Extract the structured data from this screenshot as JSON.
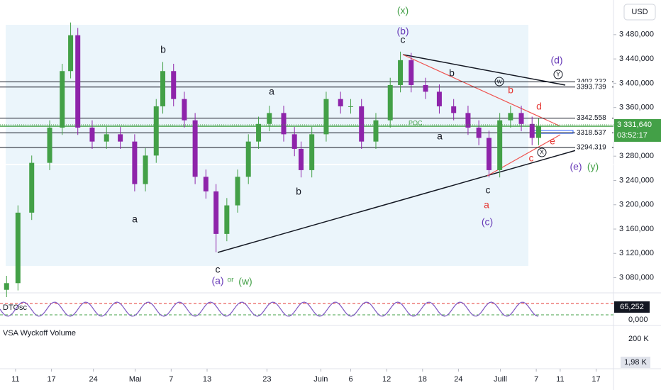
{
  "chart_data": {
    "type": "candlestick",
    "currency": "USD",
    "up_color": "#43a047",
    "down_color": "#8e24aa",
    "x": [
      9.5,
      11.4,
      13.7,
      16.7,
      18.8,
      20.2,
      21.4,
      23.8,
      26.2,
      28.5,
      30.9,
      32.7,
      34.5,
      35.6,
      37.4,
      39.2,
      41,
      42.8,
      44.5,
      46.3,
      48.1,
      49.9,
      51.6,
      53.4,
      55.8,
      57.6,
      58.7,
      60.5,
      62.9,
      65.3,
      67,
      68.8,
      71.2,
      73.6,
      75.3,
      77.1,
      79.5,
      81.8,
      84.2,
      86.6,
      88.4,
      90.1,
      91.9,
      93.7,
      95.5,
      97.3,
      98.4
    ],
    "open": [
      3060,
      3071,
      3187,
      3269,
      3327,
      3420,
      3479,
      3327,
      3304,
      3316,
      3304,
      3234,
      3281,
      3362,
      3420,
      3374,
      3339,
      3246,
      3222,
      3152,
      3199,
      3246,
      3304,
      3333,
      3351,
      3316,
      3292,
      3257,
      3316,
      3374,
      3362,
      3362,
      3304,
      3339,
      3397,
      3438,
      3397,
      3386,
      3362,
      3351,
      3327,
      3310,
      3257,
      3339,
      3351,
      3333,
      3310
    ],
    "high": [
      3083,
      3199,
      3281,
      3339,
      3432,
      3500,
      3491,
      3339,
      3328,
      3328,
      3316,
      3293,
      3374,
      3435,
      3432,
      3386,
      3351,
      3258,
      3234,
      3211,
      3258,
      3316,
      3345,
      3363,
      3363,
      3328,
      3304,
      3328,
      3386,
      3386,
      3374,
      3374,
      3351,
      3409,
      3452,
      3450,
      3409,
      3398,
      3374,
      3363,
      3339,
      3322,
      3351,
      3363,
      3363,
      3345,
      3342
    ],
    "low": [
      3048,
      3059,
      3175,
      3257,
      3315,
      3408,
      3315,
      3292,
      3292,
      3292,
      3222,
      3222,
      3269,
      3350,
      3362,
      3327,
      3234,
      3210,
      3122,
      3140,
      3187,
      3234,
      3292,
      3321,
      3304,
      3280,
      3245,
      3245,
      3304,
      3350,
      3350,
      3292,
      3292,
      3327,
      3385,
      3385,
      3374,
      3350,
      3339,
      3315,
      3298,
      3245,
      3245,
      3327,
      3321,
      3298,
      3298
    ],
    "close": [
      3071,
      3187,
      3269,
      3327,
      3420,
      3479,
      3327,
      3304,
      3316,
      3304,
      3234,
      3281,
      3362,
      3420,
      3374,
      3339,
      3246,
      3222,
      3152,
      3199,
      3246,
      3304,
      3333,
      3351,
      3316,
      3292,
      3257,
      3316,
      3374,
      3362,
      3362,
      3304,
      3339,
      3397,
      3438,
      3397,
      3386,
      3362,
      3351,
      3327,
      3310,
      3257,
      3339,
      3351,
      3333,
      3310,
      3330
    ],
    "xlim": [
      8.4,
      110.9
    ],
    "xticks": [
      {
        "value": 11,
        "label": "11"
      },
      {
        "value": 17,
        "label": "17"
      },
      {
        "value": 24,
        "label": "24"
      },
      {
        "value": 31,
        "label": "Mai"
      },
      {
        "value": 37,
        "label": "7"
      },
      {
        "value": 43,
        "label": "13"
      },
      {
        "value": 53,
        "label": "23"
      },
      {
        "value": 62,
        "label": "Juin"
      },
      {
        "value": 67,
        "label": "6"
      },
      {
        "value": 73,
        "label": "12"
      },
      {
        "value": 79,
        "label": "18"
      },
      {
        "value": 85,
        "label": "24"
      },
      {
        "value": 92,
        "label": "Juill"
      },
      {
        "value": 98,
        "label": "7"
      },
      {
        "value": 102,
        "label": "11"
      },
      {
        "value": 108,
        "label": "17"
      }
    ],
    "ylim": [
      3055,
      3537
    ],
    "yticks": [
      {
        "value": 3480,
        "label": "3 480,000"
      },
      {
        "value": 3440,
        "label": "3 440,000"
      },
      {
        "value": 3400,
        "label": "3 400,000"
      },
      {
        "value": 3360,
        "label": "3 360,000"
      },
      {
        "value": 3280,
        "label": "3 280,000"
      },
      {
        "value": 3240,
        "label": "3 240,000"
      },
      {
        "value": 3200,
        "label": "3 200,000"
      },
      {
        "value": 3160,
        "label": "3 160,000"
      },
      {
        "value": 3120,
        "label": "3 120,000"
      },
      {
        "value": 3080,
        "label": "3 080,000"
      }
    ],
    "levels": [
      {
        "value": 3402.232,
        "label": "3402.232"
      },
      {
        "value": 3393.739,
        "label": "3393.739"
      },
      {
        "value": 3342.558,
        "label": "3342.558"
      },
      {
        "value": 3318.537,
        "label": "3318.537"
      },
      {
        "value": 3294.319,
        "label": "3294.319"
      }
    ],
    "current_price": {
      "value": 3331.64,
      "label": "3 331,640"
    },
    "countdown": "03:52:17",
    "poc": "POC",
    "annotations": [
      "(x)",
      "(b)",
      "c",
      "b",
      "a",
      "b",
      "w",
      "b",
      "(d)",
      "Y",
      "d",
      "a",
      "X",
      "e",
      "c",
      "(e)",
      "(y)",
      "b",
      "c",
      "a",
      "(c)",
      "a",
      "c",
      "(a)",
      "or",
      "(w)"
    ],
    "oscillator": {
      "name": "DTOsc",
      "value_label": "65,252",
      "zero_label": "0,000"
    },
    "volume": {
      "name": "VSA Wyckoff Volume",
      "scale_label": "200 K",
      "value_label": "1,98 K"
    }
  }
}
